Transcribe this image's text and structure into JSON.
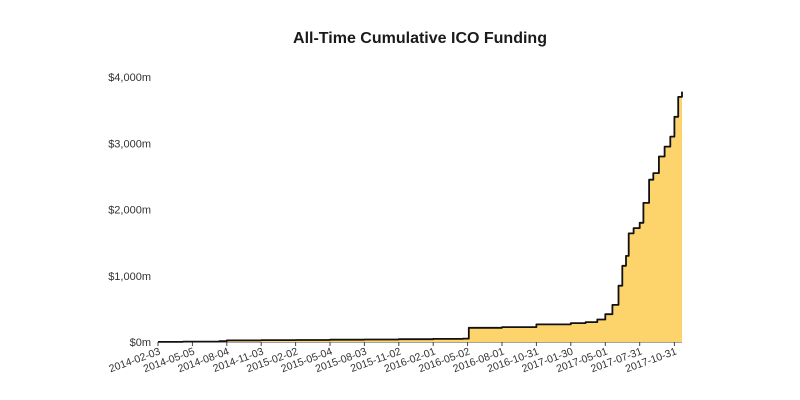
{
  "chart_data": {
    "type": "area",
    "title": "All-Time Cumulative ICO Funding",
    "xlabel": "",
    "ylabel": "",
    "ylim": [
      0,
      4000
    ],
    "x_range": [
      "2014-02-03",
      "2017-11-20"
    ],
    "y_ticks": [
      {
        "value": 0,
        "label": "$0m"
      },
      {
        "value": 1000,
        "label": "$1,000m"
      },
      {
        "value": 2000,
        "label": "$2,000m"
      },
      {
        "value": 3000,
        "label": "$3,000m"
      },
      {
        "value": 4000,
        "label": "$4,000m"
      }
    ],
    "x_ticks": [
      "2014-02-03",
      "2014-05-05",
      "2014-08-04",
      "2014-11-03",
      "2015-02-02",
      "2015-05-04",
      "2015-08-03",
      "2015-11-02",
      "2016-02-01",
      "2016-05-02",
      "2016-08-01",
      "2016-10-31",
      "2017-01-30",
      "2017-05-01",
      "2017-07-31",
      "2017-10-31"
    ],
    "grid": false,
    "legend": "none",
    "colors": {
      "fill": "#fdd36b",
      "line": "#111111",
      "axis": "#444444"
    },
    "series": [
      {
        "values": [
          {
            "x": "2014-02-03",
            "y": 2
          },
          {
            "x": "2014-04-10",
            "y": 6
          },
          {
            "x": "2014-07-15",
            "y": 12
          },
          {
            "x": "2014-08-04",
            "y": 24
          },
          {
            "x": "2014-11-03",
            "y": 28
          },
          {
            "x": "2015-02-02",
            "y": 30
          },
          {
            "x": "2015-05-04",
            "y": 34
          },
          {
            "x": "2015-08-03",
            "y": 38
          },
          {
            "x": "2015-11-02",
            "y": 42
          },
          {
            "x": "2016-02-01",
            "y": 47
          },
          {
            "x": "2016-04-20",
            "y": 52
          },
          {
            "x": "2016-05-05",
            "y": 215
          },
          {
            "x": "2016-08-01",
            "y": 225
          },
          {
            "x": "2016-10-31",
            "y": 265
          },
          {
            "x": "2017-01-30",
            "y": 285
          },
          {
            "x": "2017-03-10",
            "y": 300
          },
          {
            "x": "2017-04-10",
            "y": 340
          },
          {
            "x": "2017-05-01",
            "y": 420
          },
          {
            "x": "2017-05-20",
            "y": 560
          },
          {
            "x": "2017-06-05",
            "y": 850
          },
          {
            "x": "2017-06-15",
            "y": 1150
          },
          {
            "x": "2017-06-25",
            "y": 1300
          },
          {
            "x": "2017-07-02",
            "y": 1640
          },
          {
            "x": "2017-07-15",
            "y": 1720
          },
          {
            "x": "2017-07-31",
            "y": 1800
          },
          {
            "x": "2017-08-10",
            "y": 2100
          },
          {
            "x": "2017-08-25",
            "y": 2450
          },
          {
            "x": "2017-09-05",
            "y": 2550
          },
          {
            "x": "2017-09-20",
            "y": 2800
          },
          {
            "x": "2017-10-05",
            "y": 2950
          },
          {
            "x": "2017-10-20",
            "y": 3100
          },
          {
            "x": "2017-10-31",
            "y": 3400
          },
          {
            "x": "2017-11-10",
            "y": 3700
          },
          {
            "x": "2017-11-20",
            "y": 3780
          }
        ]
      }
    ]
  }
}
